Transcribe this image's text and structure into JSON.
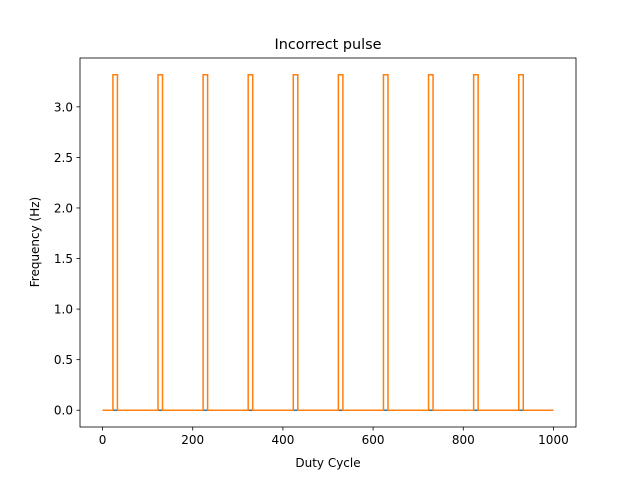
{
  "chart_data": {
    "type": "line",
    "title": "Incorrect pulse",
    "xlabel": "Duty Cycle",
    "ylabel": "Frequency (Hz)",
    "xlim": [
      -50,
      1050
    ],
    "ylim": [
      -0.166,
      3.483
    ],
    "grid": false,
    "legend": "none",
    "x_ticks": [
      "0",
      "200",
      "400",
      "600",
      "800",
      "1000"
    ],
    "y_ticks": [
      "0.0",
      "0.5",
      "1.0",
      "1.5",
      "2.0",
      "2.5",
      "3.0"
    ],
    "pulse_high": 3.317,
    "pulse_low": 0.0,
    "pulses": [
      {
        "start": 23,
        "end": 33
      },
      {
        "start": 123,
        "end": 133
      },
      {
        "start": 223,
        "end": 233
      },
      {
        "start": 323,
        "end": 333
      },
      {
        "start": 423,
        "end": 433
      },
      {
        "start": 523,
        "end": 533
      },
      {
        "start": 623,
        "end": 633
      },
      {
        "start": 723,
        "end": 733
      },
      {
        "start": 823,
        "end": 833
      },
      {
        "start": 923,
        "end": 933
      }
    ],
    "series": [
      {
        "color": "#1f77b4",
        "x": [
          0,
          1000
        ],
        "y": [
          0.0,
          0.0
        ]
      },
      {
        "color": "#ff7f0e",
        "kind": "pulse_train",
        "x_range": [
          0,
          1000
        ]
      }
    ]
  }
}
